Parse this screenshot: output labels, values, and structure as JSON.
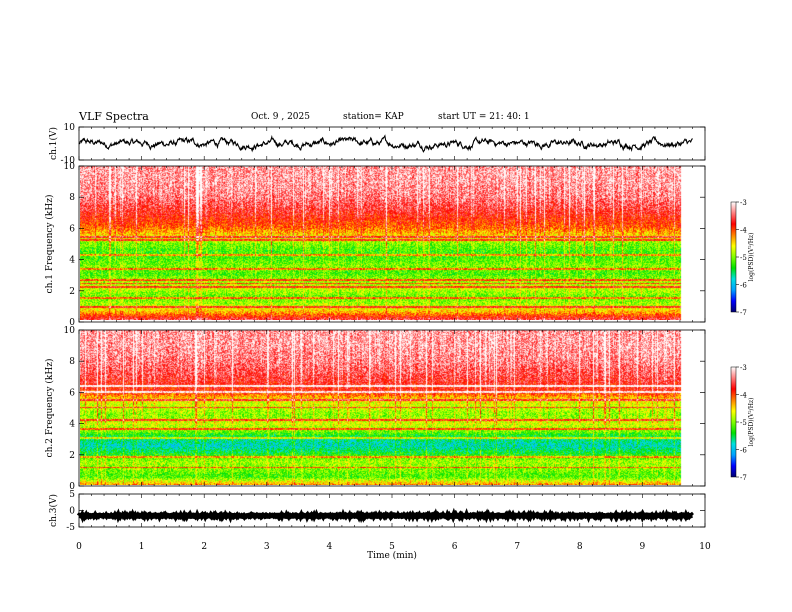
{
  "header": {
    "title": "VLF Spectra",
    "date": "Oct. 9 , 2025",
    "station": "station= KAP",
    "start": "start UT = 21: 40: 1"
  },
  "colorbar": {
    "ticks": [
      "-3",
      "-4",
      "-5",
      "-6",
      "-7"
    ],
    "label": "log(PSD)(V²/Hz)",
    "colors": [
      "#000070",
      "#0000ff",
      "#00a0ff",
      "#00e0e0",
      "#00e000",
      "#80ff00",
      "#ffff00",
      "#ff8000",
      "#ff0000",
      "#ff8080",
      "#ffffff"
    ]
  },
  "chart_data": [
    {
      "type": "line",
      "title": "ch.1 waveform",
      "ylabel": "ch.1(V)",
      "ylim": [
        -10,
        10
      ],
      "yticks": [
        "10",
        "-10"
      ],
      "xlim": [
        0,
        10
      ],
      "trace_mean": 0,
      "trace_amplitude": 3.5,
      "valid_until_min": 9.8
    },
    {
      "type": "heatmap",
      "title": "ch.1 spectrogram",
      "ylabel": "ch.1 Frequency (kHz)",
      "ylim": [
        0,
        10
      ],
      "yticks": [
        "0",
        "2",
        "4",
        "6",
        "8",
        "10"
      ],
      "xlim": [
        0,
        10
      ],
      "clim": [
        -7,
        -3
      ],
      "profile_freq_khz": [
        0,
        0.5,
        1.0,
        1.5,
        2.0,
        2.5,
        3.0,
        3.5,
        4.0,
        4.5,
        5.0,
        5.5,
        6.0,
        6.5,
        7.0,
        8.0,
        9.0,
        10.0
      ],
      "profile_log_psd": [
        -3.6,
        -4.4,
        -4.9,
        -5.1,
        -4.8,
        -4.9,
        -5.2,
        -5.0,
        -5.2,
        -5.2,
        -5.0,
        -4.5,
        -4.1,
        -3.9,
        -3.7,
        -3.4,
        -3.3,
        -3.3
      ],
      "lines_khz": [
        0.8,
        1.4,
        2.1,
        2.35,
        2.6,
        3.3,
        4.2,
        5.2,
        5.4
      ]
    },
    {
      "type": "heatmap",
      "title": "ch.2 spectrogram",
      "ylabel": "ch.2 Frequency (kHz)",
      "ylim": [
        0,
        10
      ],
      "yticks": [
        "0",
        "2",
        "4",
        "6",
        "8",
        "10"
      ],
      "xlim": [
        0,
        10
      ],
      "clim": [
        -7,
        -3
      ],
      "profile_freq_khz": [
        0,
        0.5,
        1.0,
        1.5,
        2.0,
        2.5,
        3.0,
        3.5,
        4.0,
        4.5,
        5.0,
        5.5,
        6.0,
        7.0,
        8.0,
        9.0,
        10.0
      ],
      "profile_log_psd": [
        -4.3,
        -5.2,
        -5.0,
        -4.9,
        -5.4,
        -5.8,
        -5.6,
        -5.0,
        -4.7,
        -5.0,
        -4.8,
        -4.6,
        -3.9,
        -3.6,
        -3.4,
        -3.3,
        -3.3
      ],
      "lines_khz": [
        1.1,
        1.8,
        3.0,
        3.6,
        4.2,
        5.0,
        5.5,
        6.0,
        6.4
      ]
    },
    {
      "type": "line",
      "title": "ch.3 waveform",
      "ylabel": "ch.3(V)",
      "ylim": [
        -5,
        5
      ],
      "yticks": [
        "5",
        "0",
        "-5"
      ],
      "xlim": [
        0,
        10
      ],
      "trace_mean": -1.6,
      "trace_amplitude": 0.4,
      "valid_until_min": 9.8
    }
  ],
  "xaxis": {
    "label": "Time (min)",
    "ticks": [
      "0",
      "1",
      "2",
      "3",
      "4",
      "5",
      "6",
      "7",
      "8",
      "9",
      "10"
    ]
  }
}
